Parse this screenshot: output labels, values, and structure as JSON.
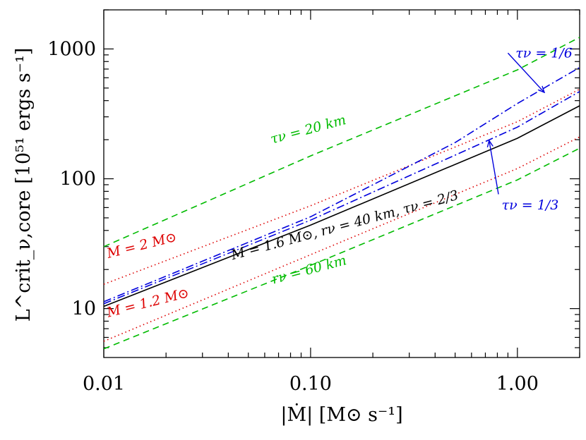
{
  "chart_data": {
    "type": "line",
    "xscale": "log",
    "yscale": "log",
    "xlim": [
      0.01,
      2.0
    ],
    "ylim": [
      4.2,
      2000
    ],
    "xlabel": "|Ṁ| [M⊙ s⁻¹]",
    "ylabel": "L^crit_ν,core [10⁵¹ ergs s⁻¹]",
    "xticks": [
      {
        "value": 0.01,
        "label": "0.01"
      },
      {
        "value": 0.1,
        "label": "0.10"
      },
      {
        "value": 1.0,
        "label": "1.00"
      }
    ],
    "yticks": [
      {
        "value": 10,
        "label": "10"
      },
      {
        "value": 100,
        "label": "100"
      },
      {
        "value": 1000,
        "label": "1000"
      }
    ],
    "series": [
      {
        "id": "fiducial",
        "color": "#000000",
        "dash": "solid",
        "x": [
          0.01,
          0.1,
          1.0,
          2.0
        ],
        "y": [
          10.4,
          44,
          205,
          365
        ]
      },
      {
        "id": "M2",
        "color": "#dd0000",
        "dash": "dotted",
        "x": [
          0.01,
          0.1,
          1.0,
          2.0
        ],
        "y": [
          15.4,
          62,
          275,
          490
        ]
      },
      {
        "id": "M1.2",
        "color": "#dd0000",
        "dash": "dotted",
        "x": [
          0.01,
          0.1,
          1.0,
          2.0
        ],
        "y": [
          5.6,
          26,
          120,
          210
        ]
      },
      {
        "id": "r20",
        "color": "#00bb00",
        "dash": "dashed",
        "x": [
          0.01,
          0.1,
          1.0,
          2.0
        ],
        "y": [
          30,
          150,
          690,
          1230
        ]
      },
      {
        "id": "r60",
        "color": "#00bb00",
        "dash": "dashed",
        "x": [
          0.01,
          0.1,
          1.0,
          2.0
        ],
        "y": [
          4.9,
          21.5,
          98,
          172
        ]
      },
      {
        "id": "tau1_6",
        "color": "#0000dd",
        "dash": "dashdot",
        "x": [
          0.01,
          0.1,
          0.5,
          1.0,
          2.0
        ],
        "y": [
          11.3,
          51,
          190,
          380,
          720
        ]
      },
      {
        "id": "tau1_3",
        "color": "#0000dd",
        "dash": "dashdot",
        "x": [
          0.01,
          0.1,
          1.0,
          2.0
        ],
        "y": [
          10.9,
          48,
          250,
          470
        ]
      }
    ],
    "annotations": [
      {
        "id": "label-m2",
        "text": "M = 2 M⊙",
        "color": "#dd0000",
        "x": 0.0105,
        "y": 24.5,
        "angle": -14
      },
      {
        "id": "label-m12",
        "text": "M = 1.2 M⊙",
        "color": "#dd0000",
        "x": 0.0105,
        "y": 8.6,
        "angle": -14
      },
      {
        "id": "label-r20",
        "text": "τν = 20 km",
        "color": "#00bb00",
        "x": 0.065,
        "y": 186,
        "angle": -15
      },
      {
        "id": "label-r60",
        "text": "rν = 60 km",
        "color": "#00bb00",
        "x": 0.066,
        "y": 15.5,
        "angle": -15
      },
      {
        "id": "label-fid",
        "text": "M = 1.6 M⊙, rν = 40 km, τν = 2/3",
        "color": "#000000",
        "x": 0.042,
        "y": 23.8,
        "angle": -15
      },
      {
        "id": "label-tau16",
        "text": "τν = 1/6",
        "color": "#0000dd",
        "x": 0.98,
        "y": 860,
        "angle": 0
      },
      {
        "id": "label-tau13",
        "text": "τν = 1/3",
        "color": "#0000dd",
        "x": 0.84,
        "y": 58,
        "angle": 0
      }
    ],
    "arrows": [
      {
        "id": "arrow-tau16",
        "color": "#0000dd",
        "x1": 0.9,
        "y1": 930,
        "x2": 1.35,
        "y2": 462
      },
      {
        "id": "arrow-tau13",
        "color": "#0000dd",
        "x1": 0.81,
        "y1": 76,
        "x2": 0.73,
        "y2": 197
      }
    ]
  }
}
